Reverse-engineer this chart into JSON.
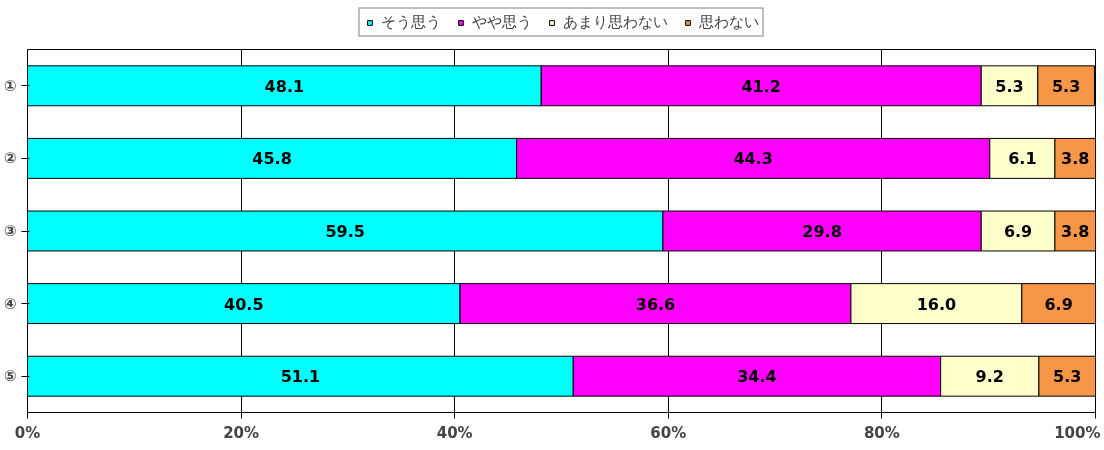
{
  "chart_data": {
    "type": "bar",
    "orientation": "horizontal",
    "stacked": true,
    "categories": [
      "①",
      "②",
      "③",
      "④",
      "⑤"
    ],
    "series": [
      {
        "name": "そう思う",
        "color": "#00ffff",
        "values": [
          48.1,
          45.8,
          59.5,
          40.5,
          51.1
        ],
        "value_labels": [
          "48.1",
          "45.8",
          "59.5",
          "40.5",
          "51.1"
        ]
      },
      {
        "name": "やや思う",
        "color": "#ff00ff",
        "values": [
          41.2,
          44.3,
          29.8,
          36.6,
          34.4
        ],
        "value_labels": [
          "41.2",
          "44.3",
          "29.8",
          "36.6",
          "34.4"
        ]
      },
      {
        "name": "あまり思わない",
        "color": "#ffffcc",
        "values": [
          5.3,
          6.1,
          6.9,
          16.0,
          9.2
        ],
        "value_labels": [
          "5.3",
          "6.1",
          "6.9",
          "16.0",
          "9.2"
        ]
      },
      {
        "name": "思わない",
        "color": "#f79646",
        "values": [
          5.3,
          3.8,
          3.8,
          6.9,
          5.3
        ],
        "value_labels": [
          "5.3",
          "3.8",
          "3.8",
          "6.9",
          "5.3"
        ]
      }
    ],
    "xlim": [
      0,
      100
    ],
    "xticks": [
      {
        "value": 0,
        "label": "0%"
      },
      {
        "value": 20,
        "label": "20%"
      },
      {
        "value": 40,
        "label": "40%"
      },
      {
        "value": 60,
        "label": "60%"
      },
      {
        "value": 80,
        "label": "80%"
      },
      {
        "value": 100,
        "label": "100%"
      }
    ],
    "grid": "x",
    "legend": "top"
  }
}
